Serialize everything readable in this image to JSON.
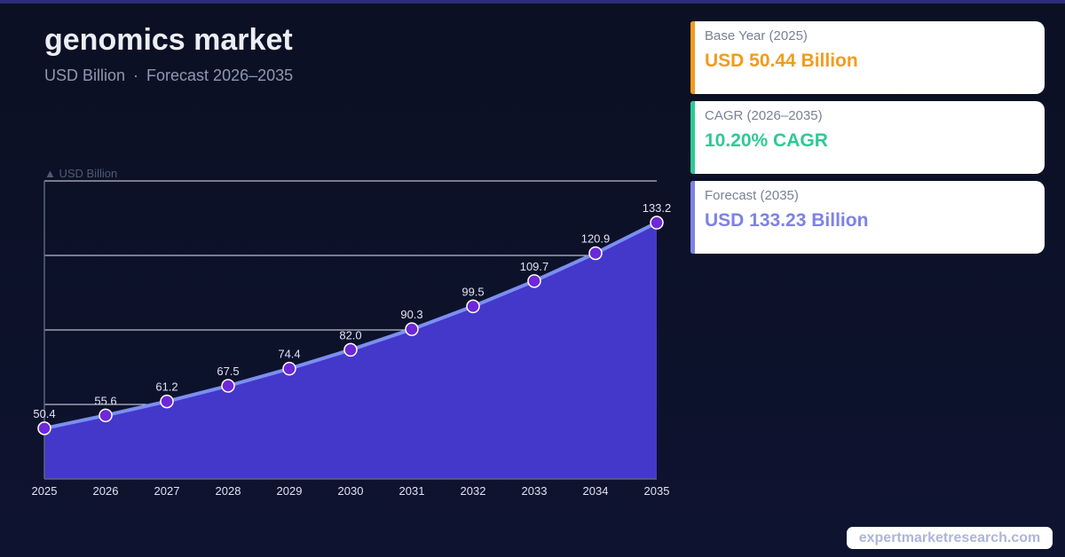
{
  "title": "genomics market",
  "subtitle": {
    "unit": "USD Billion",
    "separator": "·",
    "forecast": "Forecast 2026–2035"
  },
  "cards": [
    {
      "label": "Base Year (2025)",
      "value": "USD 50.44 Billion",
      "color": "#f29b1d"
    },
    {
      "label": "CAGR (2026–2035)",
      "value": "10.20% CAGR",
      "color": "#2ec995"
    },
    {
      "label": "Forecast (2035)",
      "value": "USD 133.23 Billion",
      "color": "#7d82e6"
    }
  ],
  "footer": "expertmarketresearch.com",
  "colors": {
    "area": "#4338ca",
    "line": "#7b8ff0",
    "point": "#6d28d9",
    "background": "#0b1023"
  },
  "chart_data": {
    "type": "area",
    "ylabel": "▲ USD Billion",
    "categories": [
      "2025",
      "2026",
      "2027",
      "2028",
      "2029",
      "2030",
      "2031",
      "2032",
      "2033",
      "2034",
      "2035"
    ],
    "values": [
      50.4,
      55.6,
      61.2,
      67.5,
      74.4,
      82.0,
      90.3,
      99.5,
      109.7,
      120.9,
      133.2
    ],
    "value_labels": [
      "50.4",
      "55.6",
      "61.2",
      "67.5",
      "74.4",
      "82.0",
      "90.3",
      "99.5",
      "109.7",
      "120.9",
      "133.2"
    ],
    "ylim": [
      30,
      150
    ],
    "gridlines": [
      60,
      90,
      120,
      150
    ],
    "grid": true
  }
}
